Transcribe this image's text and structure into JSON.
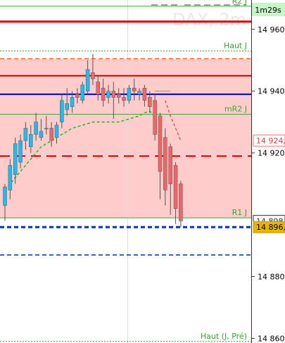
{
  "chart_data": {
    "type": "candlestick",
    "watermark": "DAX, 2m",
    "timer": "1m29s",
    "ylim": [
      14858.5,
      14969.5
    ],
    "y_ticks": [
      {
        "value": 14960,
        "label": "14 960"
      },
      {
        "value": 14940,
        "label": "14 940"
      },
      {
        "value": 14920,
        "label": "14 920"
      },
      {
        "value": 14880,
        "label": "14 880"
      },
      {
        "value": 14860,
        "label": "14 860"
      }
    ],
    "price_tags": [
      {
        "value": 14924,
        "label": "14 924,",
        "style": "outline-red"
      },
      {
        "value": 14898,
        "label": "14 898,",
        "style": "outline-dark"
      },
      {
        "value": 14896,
        "label": "14 896,",
        "style": "gold"
      }
    ],
    "levels": [
      {
        "name": "R2 J",
        "value": 14967.5,
        "color": "#33aa33",
        "dash": "solid",
        "width": 1
      },
      {
        "name": "",
        "value": 14962.5,
        "color": "#dd0000",
        "dash": "solid",
        "width": 3
      },
      {
        "name": "Haut J",
        "value": 14953,
        "color": "#33aa33",
        "dash": "dot",
        "width": 1
      },
      {
        "name": "",
        "value": 14950.5,
        "color": "#ff6622",
        "dash": "dash",
        "width": 1.5
      },
      {
        "name": "",
        "value": 14945,
        "color": "#cc0000",
        "dash": "solid",
        "width": 2
      },
      {
        "name": "",
        "value": 14939,
        "color": "#0000bb",
        "dash": "solid",
        "width": 2
      },
      {
        "name": "mR2 J",
        "value": 14932.5,
        "color": "#33aa33",
        "dash": "solid",
        "width": 1
      },
      {
        "name": "",
        "value": 14919,
        "color": "#dd0000",
        "dash": "longdash",
        "width": 2
      },
      {
        "name": "R1 J",
        "value": 14899,
        "color": "#33aa33",
        "dash": "solid",
        "width": 1
      },
      {
        "name": "",
        "value": 14896,
        "color": "#0033aa",
        "dash": "dash",
        "width": 3
      },
      {
        "name": "",
        "value": 14887,
        "color": "#0033aa",
        "dash": "dash",
        "width": 1.5
      },
      {
        "name": "Haut (J, Pré)",
        "value": 14859,
        "color": "#33aa33",
        "dash": "dot",
        "width": 1
      }
    ],
    "zone": {
      "from": 14899,
      "to": 14950.5,
      "color": "#ffcccc"
    },
    "candles": [
      {
        "o": 14903,
        "h": 14910,
        "l": 14898,
        "c": 14909
      },
      {
        "o": 14908,
        "h": 14918,
        "l": 14905,
        "c": 14916
      },
      {
        "o": 14913,
        "h": 14925,
        "l": 14910,
        "c": 14923
      },
      {
        "o": 14917,
        "h": 14926,
        "l": 14915,
        "c": 14924
      },
      {
        "o": 14924,
        "h": 14930,
        "l": 14921,
        "c": 14928
      },
      {
        "o": 14922,
        "h": 14929,
        "l": 14920,
        "c": 14926
      },
      {
        "o": 14926,
        "h": 14933,
        "l": 14924,
        "c": 14930
      },
      {
        "o": 14925,
        "h": 14931,
        "l": 14924,
        "c": 14927
      },
      {
        "o": 14928,
        "h": 14932,
        "l": 14926,
        "c": 14928
      },
      {
        "o": 14928,
        "h": 14930,
        "l": 14922,
        "c": 14924
      },
      {
        "o": 14925,
        "h": 14930,
        "l": 14923,
        "c": 14929
      },
      {
        "o": 14930,
        "h": 14939,
        "l": 14928,
        "c": 14937
      },
      {
        "o": 14934,
        "h": 14941,
        "l": 14932,
        "c": 14936
      },
      {
        "o": 14935,
        "h": 14940,
        "l": 14933,
        "c": 14938
      },
      {
        "o": 14939,
        "h": 14941,
        "l": 14936,
        "c": 14938
      },
      {
        "o": 14937,
        "h": 14943,
        "l": 14936,
        "c": 14942
      },
      {
        "o": 14940,
        "h": 14950,
        "l": 14939,
        "c": 14947
      },
      {
        "o": 14946,
        "h": 14952,
        "l": 14942,
        "c": 14944
      },
      {
        "o": 14943,
        "h": 14945,
        "l": 14937,
        "c": 14939
      },
      {
        "o": 14941,
        "h": 14944,
        "l": 14935,
        "c": 14937
      },
      {
        "o": 14938,
        "h": 14942,
        "l": 14936,
        "c": 14940
      },
      {
        "o": 14940,
        "h": 14943,
        "l": 14931,
        "c": 14938
      },
      {
        "o": 14939,
        "h": 14941,
        "l": 14936,
        "c": 14938
      },
      {
        "o": 14938,
        "h": 14941,
        "l": 14935,
        "c": 14937
      },
      {
        "o": 14937,
        "h": 14942,
        "l": 14936,
        "c": 14941
      },
      {
        "o": 14941,
        "h": 14944,
        "l": 14937,
        "c": 14940
      },
      {
        "o": 14939,
        "h": 14941,
        "l": 14937,
        "c": 14940
      },
      {
        "o": 14941,
        "h": 14942,
        "l": 14935,
        "c": 14937
      },
      {
        "o": 14938,
        "h": 14940,
        "l": 14933,
        "c": 14935
      },
      {
        "o": 14937,
        "h": 14939,
        "l": 14924,
        "c": 14926
      },
      {
        "o": 14932,
        "h": 14933,
        "l": 14905,
        "c": 14914
      },
      {
        "o": 14925,
        "h": 14928,
        "l": 14903,
        "c": 14908
      },
      {
        "o": 14922,
        "h": 14923,
        "l": 14900,
        "c": 14910
      },
      {
        "o": 14916,
        "h": 14917,
        "l": 14897,
        "c": 14902
      },
      {
        "o": 14910,
        "h": 14911,
        "l": 14896,
        "c": 14898
      }
    ],
    "ma_green": [
      14908,
      14910,
      14912,
      14914,
      14916,
      14918,
      14920,
      14922,
      14923,
      14924,
      14925,
      14926,
      14927,
      14928,
      14928.5,
      14929,
      14929.5,
      14930,
      14930,
      14930,
      14930,
      14930,
      14930,
      14930.5,
      14931,
      14931.5,
      14932,
      14933,
      14933.5,
      14932
    ],
    "ma_red": [
      14937,
      14932,
      14928,
      14924
    ],
    "ma_gray": [
      14940,
      14940,
      14940,
      14940
    ]
  }
}
